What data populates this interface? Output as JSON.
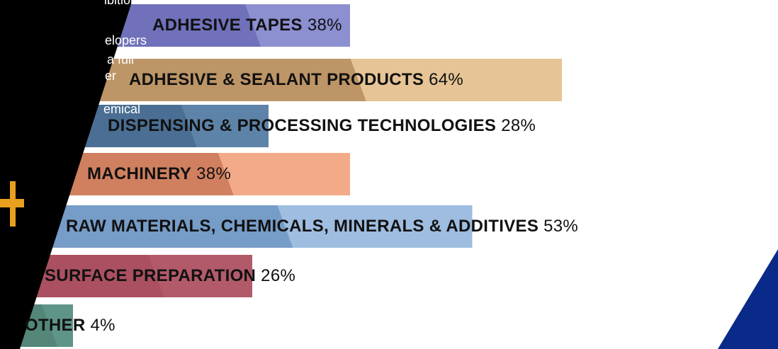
{
  "colors": {
    "panel": "#000000",
    "accent_plus": "#e8a01e",
    "corner": "#0a2a8a"
  },
  "side_text": {
    "line1": "ibition",
    "line2": "elopers",
    "line3": "a full",
    "line4": "er",
    "line5": "emical"
  },
  "chart_data": {
    "type": "bar",
    "orientation": "horizontal",
    "categories": [
      "ADHESIVE TAPES",
      "ADHESIVE & SEALANT PRODUCTS",
      "DISPENSING & PROCESSING TECHNOLOGIES",
      "MACHINERY",
      "RAW MATERIALS, CHEMICALS, MINERALS & ADDITIVES",
      "SURFACE PREPARATION",
      "OTHER"
    ],
    "values": [
      38,
      64,
      28,
      38,
      53,
      26,
      4
    ],
    "value_labels": [
      "38%",
      "64%",
      "28%",
      "38%",
      "53%",
      "26%",
      "4%"
    ],
    "bar_colors": [
      "#8c8fd0",
      "#e6c496",
      "#5d83a8",
      "#f2aa88",
      "#9ebde0",
      "#b35a6a",
      "#5f9488"
    ],
    "dark_colors": [
      "#5a5aa8",
      "#9a7040",
      "#3c5f84",
      "#b55c3e",
      "#5582b4",
      "#a44858",
      "#4a7a6e"
    ],
    "grid": false,
    "legend": "none",
    "title": "",
    "xlabel": "",
    "ylabel": ""
  }
}
